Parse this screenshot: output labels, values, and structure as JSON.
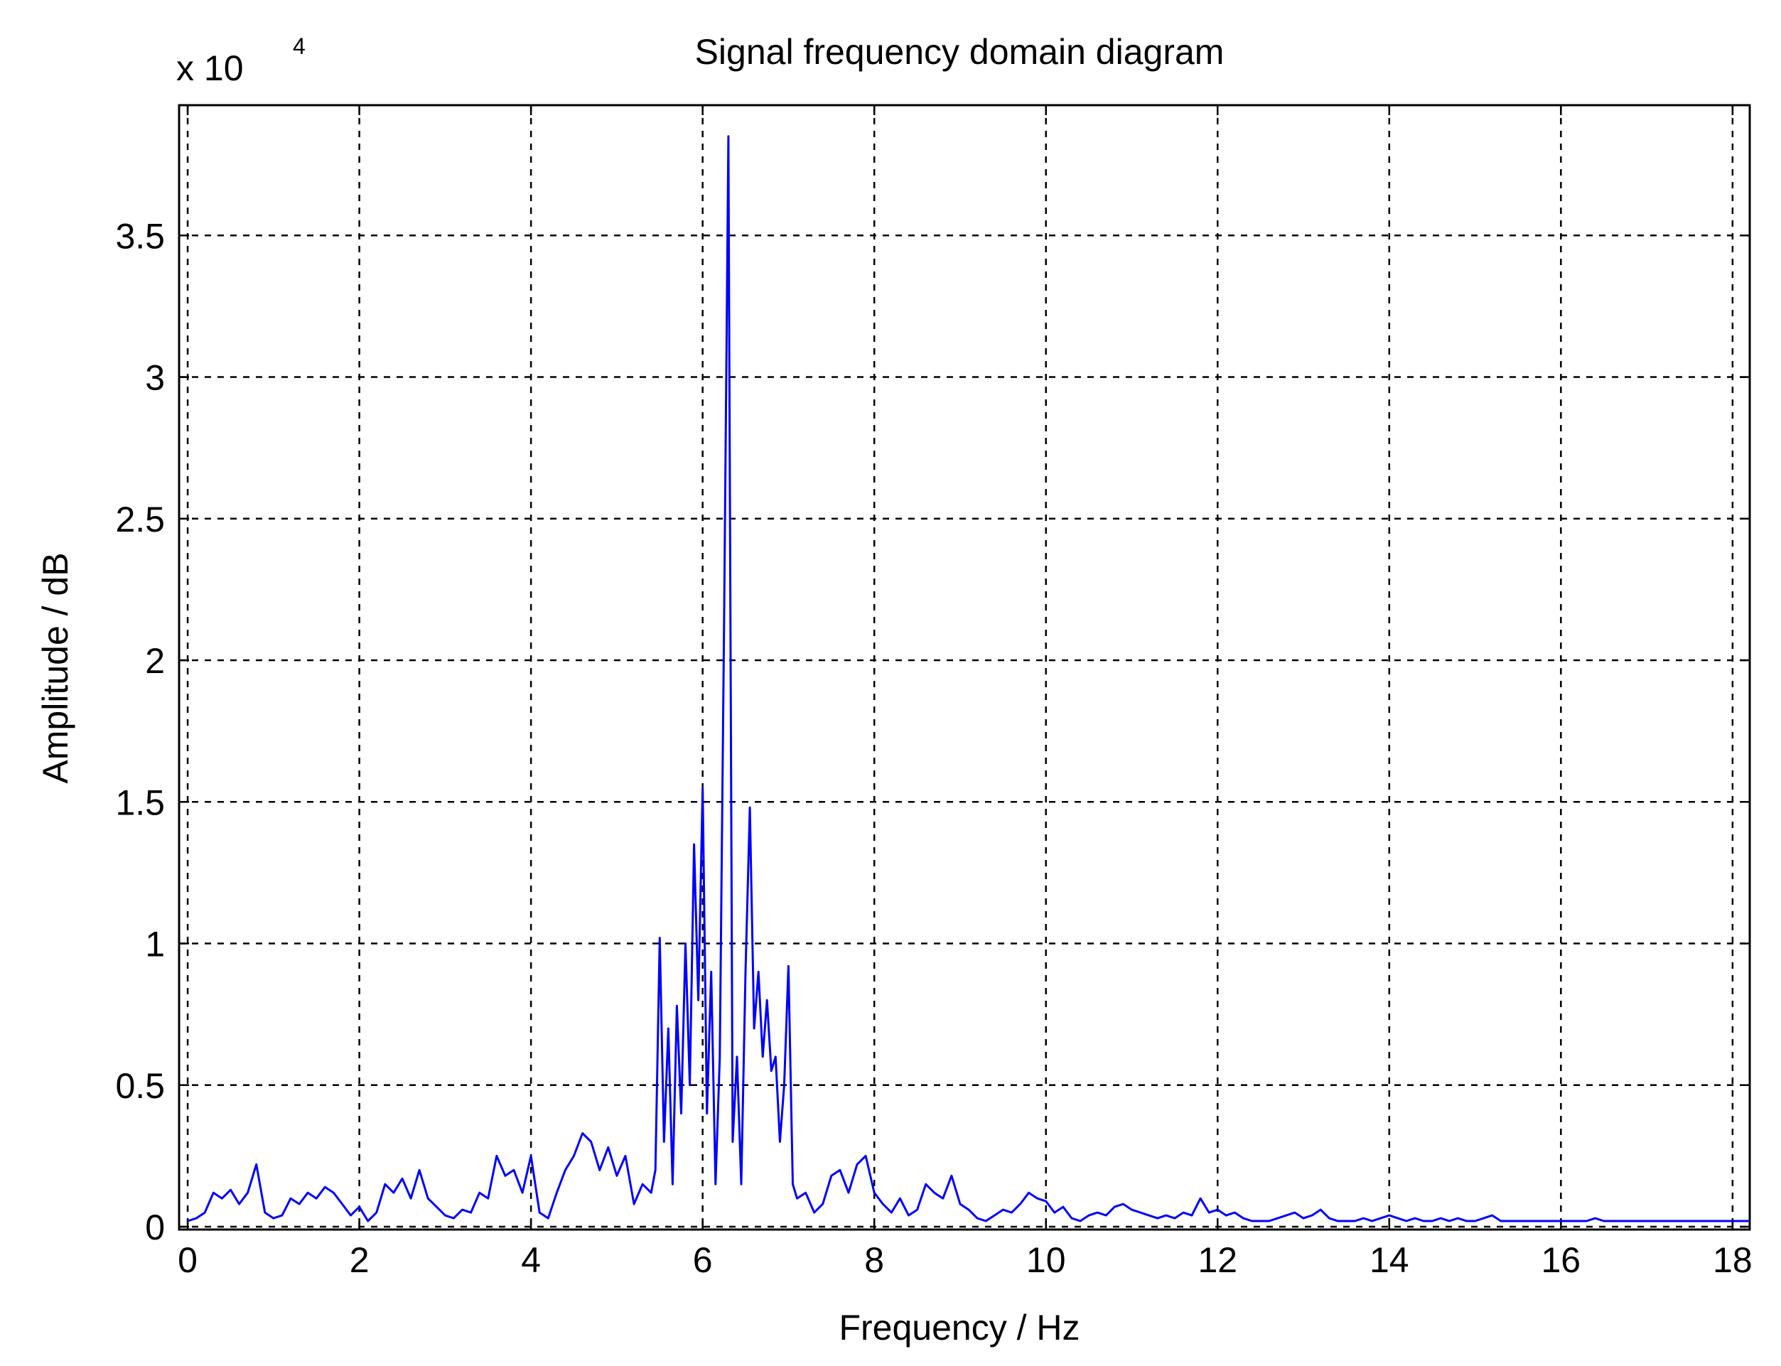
{
  "chart_data": {
    "type": "line",
    "title": "Signal frequency domain diagram",
    "x_label": "Frequency / Hz",
    "y_label": "Amplitude / dB",
    "y_scale_label": {
      "base": "x 10",
      "exponent": "4"
    },
    "xlim": [
      -0.1,
      18.2
    ],
    "ylim": [
      -0.01,
      3.96
    ],
    "xticks": [
      0,
      2,
      4,
      6,
      8,
      10,
      12,
      14,
      16,
      18
    ],
    "yticks": [
      0,
      0.5,
      1,
      1.5,
      2,
      2.5,
      3,
      3.5
    ],
    "grid": true,
    "series": [
      {
        "color": "#0000ff",
        "x": [
          0.0,
          0.1,
          0.2,
          0.3,
          0.4,
          0.5,
          0.6,
          0.7,
          0.8,
          0.9,
          1.0,
          1.1,
          1.2,
          1.3,
          1.4,
          1.5,
          1.6,
          1.7,
          1.8,
          1.9,
          2.0,
          2.1,
          2.2,
          2.3,
          2.4,
          2.5,
          2.6,
          2.7,
          2.8,
          2.9,
          3.0,
          3.1,
          3.2,
          3.3,
          3.4,
          3.5,
          3.6,
          3.7,
          3.8,
          3.9,
          4.0,
          4.1,
          4.2,
          4.3,
          4.4,
          4.5,
          4.6,
          4.7,
          4.8,
          4.9,
          5.0,
          5.1,
          5.2,
          5.3,
          5.4,
          5.45,
          5.5,
          5.55,
          5.6,
          5.65,
          5.7,
          5.75,
          5.8,
          5.85,
          5.9,
          5.95,
          6.0,
          6.05,
          6.1,
          6.15,
          6.2,
          6.25,
          6.3,
          6.35,
          6.4,
          6.45,
          6.5,
          6.55,
          6.6,
          6.65,
          6.7,
          6.75,
          6.8,
          6.85,
          6.9,
          6.95,
          7.0,
          7.05,
          7.1,
          7.2,
          7.3,
          7.4,
          7.5,
          7.6,
          7.7,
          7.8,
          7.9,
          8.0,
          8.1,
          8.2,
          8.3,
          8.4,
          8.5,
          8.6,
          8.7,
          8.8,
          8.9,
          9.0,
          9.1,
          9.2,
          9.3,
          9.4,
          9.5,
          9.6,
          9.7,
          9.8,
          9.9,
          10.0,
          10.1,
          10.2,
          10.3,
          10.4,
          10.5,
          10.6,
          10.7,
          10.8,
          10.9,
          11.0,
          11.1,
          11.2,
          11.3,
          11.4,
          11.5,
          11.6,
          11.7,
          11.8,
          11.9,
          12.0,
          12.1,
          12.2,
          12.3,
          12.4,
          12.5,
          12.6,
          12.7,
          12.8,
          12.9,
          13.0,
          13.1,
          13.2,
          13.3,
          13.4,
          13.5,
          13.6,
          13.7,
          13.8,
          13.9,
          14.0,
          14.1,
          14.2,
          14.3,
          14.4,
          14.5,
          14.6,
          14.7,
          14.8,
          14.9,
          15.0,
          15.1,
          15.2,
          15.3,
          15.4,
          15.5,
          15.6,
          15.7,
          15.8,
          15.9,
          16.0,
          16.1,
          16.2,
          16.3,
          16.4,
          16.5,
          16.6,
          16.7,
          16.8,
          16.9,
          17.0,
          17.1,
          17.2,
          17.3,
          17.4,
          17.5,
          17.6,
          17.7,
          17.8,
          17.9,
          18.0,
          18.1,
          18.2
        ],
        "values": [
          0.02,
          0.03,
          0.05,
          0.12,
          0.1,
          0.13,
          0.08,
          0.12,
          0.22,
          0.05,
          0.03,
          0.04,
          0.1,
          0.08,
          0.12,
          0.1,
          0.14,
          0.12,
          0.08,
          0.04,
          0.07,
          0.02,
          0.05,
          0.15,
          0.12,
          0.17,
          0.1,
          0.2,
          0.1,
          0.07,
          0.04,
          0.03,
          0.06,
          0.05,
          0.12,
          0.1,
          0.25,
          0.18,
          0.2,
          0.12,
          0.25,
          0.05,
          0.03,
          0.12,
          0.2,
          0.25,
          0.33,
          0.3,
          0.2,
          0.28,
          0.18,
          0.25,
          0.08,
          0.15,
          0.12,
          0.2,
          1.02,
          0.3,
          0.7,
          0.15,
          0.78,
          0.4,
          1.0,
          0.5,
          1.35,
          0.8,
          1.55,
          0.4,
          0.9,
          0.15,
          0.6,
          2.15,
          3.85,
          0.3,
          0.6,
          0.15,
          0.9,
          1.48,
          0.7,
          0.9,
          0.6,
          0.8,
          0.55,
          0.6,
          0.3,
          0.5,
          0.92,
          0.15,
          0.1,
          0.12,
          0.05,
          0.08,
          0.18,
          0.2,
          0.12,
          0.22,
          0.25,
          0.12,
          0.08,
          0.05,
          0.1,
          0.04,
          0.06,
          0.15,
          0.12,
          0.1,
          0.18,
          0.08,
          0.06,
          0.03,
          0.02,
          0.04,
          0.06,
          0.05,
          0.08,
          0.12,
          0.1,
          0.09,
          0.05,
          0.07,
          0.03,
          0.02,
          0.04,
          0.05,
          0.04,
          0.07,
          0.08,
          0.06,
          0.05,
          0.04,
          0.03,
          0.04,
          0.03,
          0.05,
          0.04,
          0.1,
          0.05,
          0.06,
          0.04,
          0.05,
          0.03,
          0.02,
          0.02,
          0.02,
          0.03,
          0.04,
          0.05,
          0.03,
          0.04,
          0.06,
          0.03,
          0.02,
          0.02,
          0.02,
          0.03,
          0.02,
          0.03,
          0.04,
          0.03,
          0.02,
          0.03,
          0.02,
          0.02,
          0.03,
          0.02,
          0.03,
          0.02,
          0.02,
          0.03,
          0.04,
          0.02,
          0.02,
          0.02,
          0.02,
          0.02,
          0.02,
          0.02,
          0.02,
          0.02,
          0.02,
          0.02,
          0.03,
          0.02,
          0.02,
          0.02,
          0.02,
          0.02,
          0.02,
          0.02,
          0.02,
          0.02,
          0.02,
          0.02,
          0.02,
          0.02,
          0.02,
          0.02,
          0.02,
          0.02,
          0.02
        ]
      }
    ]
  }
}
